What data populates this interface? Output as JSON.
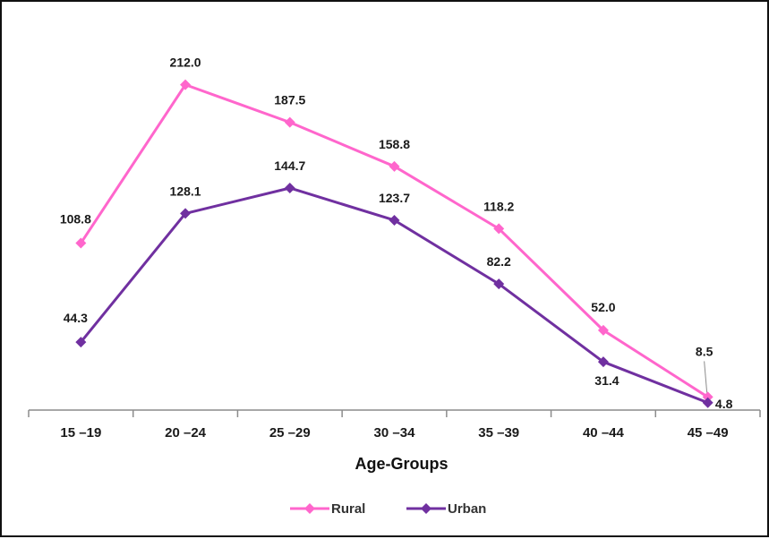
{
  "chart_data": {
    "type": "line",
    "title": "",
    "xlabel": "Age-Groups",
    "ylabel": "",
    "categories": [
      "15 –19",
      "20 –24",
      "25 –29",
      "30 –34",
      "35 –39",
      "40 –44",
      "45 –49"
    ],
    "ylim": [
      0,
      225
    ],
    "grid": false,
    "legend_position": "bottom",
    "series": [
      {
        "name": "Rural",
        "color": "#ff66cc",
        "marker": "diamond",
        "values": [
          108.8,
          212.0,
          187.5,
          158.8,
          118.2,
          52.0,
          8.5
        ],
        "labels": [
          "108.8",
          "212.0",
          "187.5",
          "158.8",
          "118.2",
          "52.0",
          "8.5"
        ]
      },
      {
        "name": "Urban",
        "color": "#7030a0",
        "marker": "diamond",
        "values": [
          44.3,
          128.1,
          144.7,
          123.7,
          82.2,
          31.4,
          4.8
        ],
        "labels": [
          "44.3",
          "128.1",
          "144.7",
          "123.7",
          "82.2",
          "31.4",
          "4.8"
        ]
      }
    ]
  }
}
